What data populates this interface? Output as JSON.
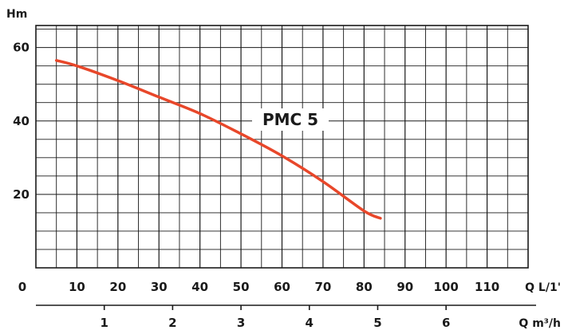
{
  "chart_data": {
    "type": "line",
    "y_axis_label": "Hm",
    "x_axis_label": "Q L/1'",
    "x2_axis_label": "Q m³/h",
    "origin_label": "0",
    "x_ticks": [
      10,
      20,
      30,
      40,
      50,
      60,
      70,
      80,
      90,
      100,
      110
    ],
    "x_tick_labels": [
      "10",
      "20",
      "30",
      "40",
      "50",
      "60",
      "70",
      "80",
      "90",
      "100",
      "110"
    ],
    "x2_ticks": [
      1,
      2,
      3,
      4,
      5,
      6
    ],
    "x2_tick_labels": [
      "1",
      "2",
      "3",
      "4",
      "5",
      "6"
    ],
    "y_ticks": [
      20,
      40,
      60
    ],
    "y_tick_labels": [
      "20",
      "40",
      "60"
    ],
    "xlim": [
      0,
      120
    ],
    "ylim": [
      0,
      66
    ],
    "grid": true,
    "series": [
      {
        "name": "PMC 5",
        "color": "#e8472a",
        "x": [
          5,
          10,
          20,
          30,
          40,
          50,
          60,
          70,
          80,
          84
        ],
        "y": [
          56.5,
          55,
          51,
          46.5,
          42,
          36.5,
          30.5,
          23.5,
          15.5,
          13.5
        ]
      }
    ]
  }
}
